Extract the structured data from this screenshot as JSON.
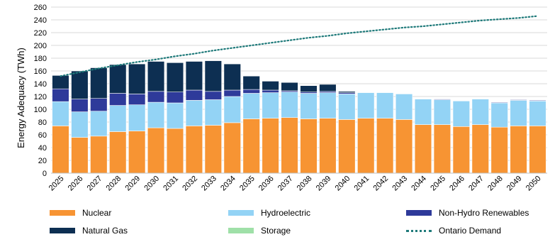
{
  "chart_data": {
    "type": "bar",
    "stacked": true,
    "ylabel": "Energy Adequacy (TWh)",
    "ylim": [
      0,
      260
    ],
    "ytick_step": 20,
    "grid": "horizontal",
    "legend_placement": "bottom",
    "categories": [
      "2025",
      "2026",
      "2027",
      "2028",
      "2029",
      "2030",
      "2031",
      "2032",
      "2033",
      "2034",
      "2035",
      "2036",
      "2037",
      "2038",
      "2039",
      "2040",
      "2041",
      "2042",
      "2043",
      "2044",
      "2045",
      "2046",
      "2047",
      "2048",
      "2049",
      "2050"
    ],
    "series": [
      {
        "name": "Nuclear",
        "color": "#f79433",
        "values": [
          74,
          56,
          58,
          65,
          66,
          71,
          70,
          74,
          75,
          79,
          85,
          86,
          87,
          85,
          86,
          84,
          86,
          86,
          84,
          76,
          76,
          73,
          76,
          72,
          74,
          74
        ]
      },
      {
        "name": "Hydroelectric",
        "color": "#93d3f5",
        "values": [
          38,
          40,
          39,
          41,
          41,
          40,
          40,
          40,
          40,
          41,
          40,
          40,
          40,
          40,
          40,
          40,
          40,
          40,
          40,
          40,
          39,
          40,
          40,
          38,
          40,
          39
        ]
      },
      {
        "name": "Non-Hydro Renewables",
        "color": "#2e3a9a",
        "values": [
          20,
          20,
          20,
          19,
          17,
          17,
          17,
          16,
          13,
          10,
          6,
          4,
          2,
          2,
          2,
          2,
          0,
          0,
          0,
          0,
          1,
          0,
          0,
          1,
          1,
          1
        ]
      },
      {
        "name": "Natural Gas",
        "color": "#0d2f52",
        "values": [
          21,
          44,
          48,
          45,
          47,
          47,
          46,
          45,
          48,
          41,
          21,
          14,
          13,
          10,
          11,
          2,
          0,
          0,
          0,
          0,
          0,
          0,
          0,
          0,
          0,
          0
        ]
      },
      {
        "name": "Storage",
        "color": "#9fe0a8",
        "values": [
          0,
          0,
          0,
          0,
          0,
          0,
          0,
          0,
          0,
          0,
          0,
          0,
          0,
          0,
          0,
          0,
          0,
          0,
          0,
          0,
          0,
          0,
          0,
          0,
          0,
          0
        ]
      }
    ],
    "lines": [
      {
        "name": "Ontario Demand",
        "color": "#1f7a7a",
        "style": "dotted",
        "values": [
          152,
          158,
          164,
          169,
          174,
          178,
          183,
          187,
          192,
          196,
          200,
          204,
          208,
          212,
          215,
          219,
          222,
          225,
          228,
          230,
          233,
          236,
          239,
          241,
          243,
          246
        ]
      }
    ]
  }
}
